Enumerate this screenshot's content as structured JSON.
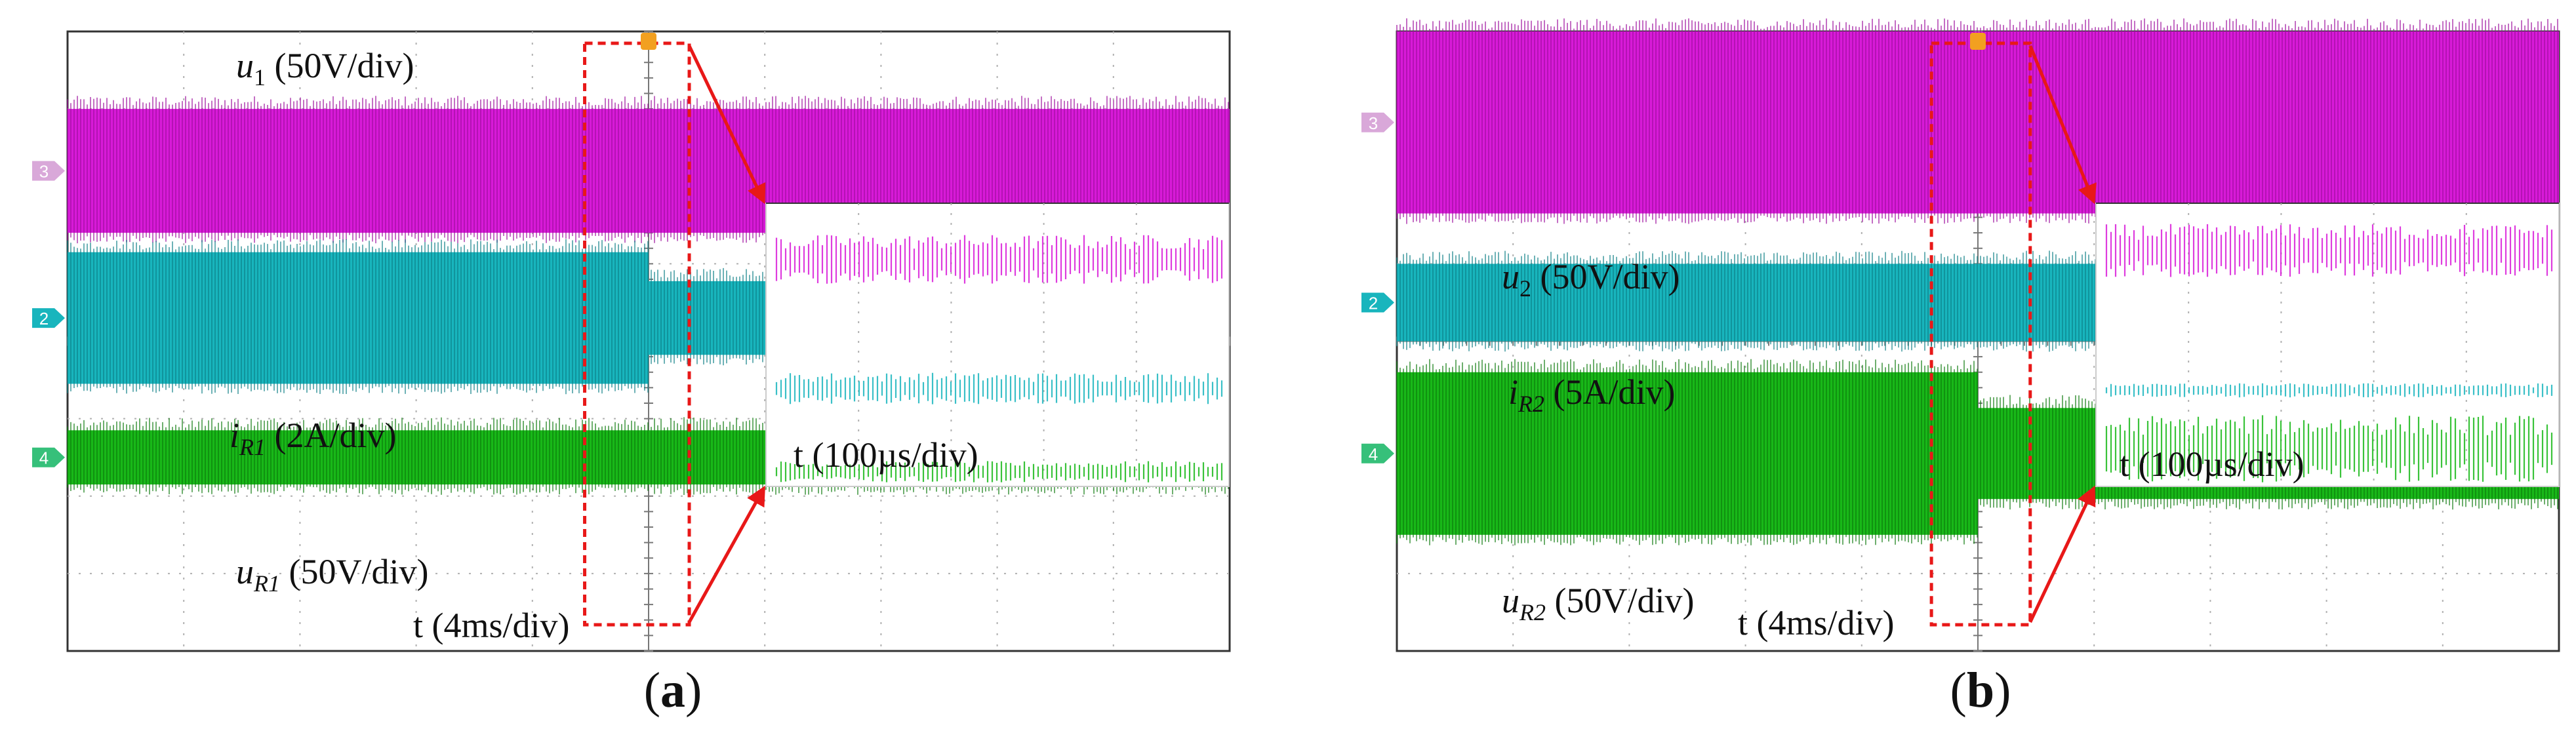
{
  "colors": {
    "magenta": "#d81ad8",
    "magenta_dark": "#9c0e9c",
    "cyan": "#18b5bd",
    "cyan_dark": "#0c7f85",
    "green": "#18b818",
    "green_dark": "#0c7a0c",
    "zoom_frame": "#e81818",
    "grid": "#b0b0b0",
    "trigger": "#f2a020"
  },
  "chart_data": [
    {
      "type": "line",
      "panel": "(a)",
      "caption_letter": "a",
      "title": "",
      "xlabel": "t (4ms/div)",
      "x_divisions": 10,
      "y_divisions": 8,
      "grid": true,
      "event_x_div": 5.0,
      "zoom_window_x_div": [
        4.45,
        5.35
      ],
      "inset_xlabel": "t (100µs/div)",
      "channel_markers": [
        "3",
        "2",
        "4"
      ],
      "series": [
        {
          "name": "u_1",
          "sym": "u",
          "sub": "1",
          "unit": "(50V/div)",
          "color": "magenta",
          "y_top_div": 1.0,
          "y_bottom_div": 2.6,
          "after_event": "unchanged",
          "band_level_div": [
            1.35,
            2.05
          ]
        },
        {
          "name": "i_R1",
          "sym": "i",
          "sub": "R1",
          "unit": "(2A/div)",
          "color": "cyan",
          "y_top_div": 2.85,
          "y_bottom_div": 4.55,
          "after_event": "reduced",
          "band_level_div": [
            3.3,
            3.75
          ]
        },
        {
          "name": "u_R1",
          "sym": "u",
          "sub": "R1",
          "unit": "(50V/div)",
          "color": "green",
          "y_top_div": 5.15,
          "y_bottom_div": 5.85,
          "after_event": "unchanged",
          "band_level_div": [
            4.55,
            4.85
          ]
        }
      ]
    },
    {
      "type": "line",
      "panel": "(b)",
      "caption_letter": "b",
      "title": "",
      "xlabel": "t (4ms/div)",
      "x_divisions": 10,
      "y_divisions": 8,
      "grid": true,
      "event_x_div": 5.0,
      "zoom_window_x_div": [
        4.6,
        5.45
      ],
      "inset_xlabel": "t (100µs/div)",
      "channel_markers": [
        "3",
        "2",
        "4"
      ],
      "series": [
        {
          "name": "u_2",
          "sym": "u",
          "sub": "2",
          "unit": "(50V/div)",
          "color": "magenta",
          "y_top_div": 0.0,
          "y_bottom_div": 2.35,
          "after_event": "unchanged",
          "band_level_div": [
            1.2,
            1.95
          ]
        },
        {
          "name": "i_R2",
          "sym": "i",
          "sub": "R2",
          "unit": "(5A/div)",
          "color": "cyan",
          "y_top_div": 3.0,
          "y_bottom_div": 4.0,
          "after_event": "unchanged",
          "band_level_div": [
            3.45,
            3.65
          ]
        },
        {
          "name": "u_R2",
          "sym": "u",
          "sub": "R2",
          "unit": "(50V/div)",
          "color": "green",
          "y_top_div": 4.4,
          "y_bottom_div": 6.5,
          "after_event": "reduced",
          "band_level_div": [
            3.9,
            4.85
          ]
        }
      ]
    }
  ]
}
